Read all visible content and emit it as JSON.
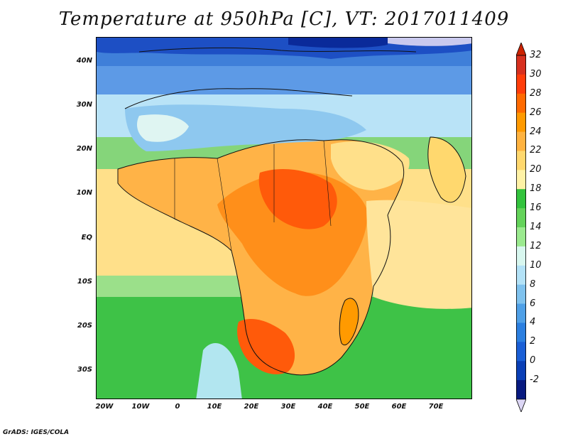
{
  "title": "Temperature at 950hPa [C], VT: 2017011409",
  "footer": "GrADS: IGES/COLA",
  "map": {
    "lat_labels": [
      "40N",
      "30N",
      "20N",
      "10N",
      "EQ",
      "10S",
      "20S",
      "30S"
    ],
    "lon_labels": [
      "20W",
      "10W",
      "0",
      "10E",
      "20E",
      "30E",
      "40E",
      "50E",
      "60E",
      "70E"
    ]
  },
  "colorbar": {
    "labels": [
      "32",
      "30",
      "28",
      "26",
      "24",
      "22",
      "20",
      "18",
      "16",
      "14",
      "12",
      "10",
      "8",
      "6",
      "4",
      "2",
      "0",
      "-2"
    ],
    "colors": [
      "#d7301f",
      "#ff3d0a",
      "#ff6a00",
      "#ff9a00",
      "#ffb340",
      "#ffd86e",
      "#fff2a6",
      "#33c33d",
      "#64d35a",
      "#9bea8f",
      "#d8f7ef",
      "#b3e2f7",
      "#7fc2ee",
      "#4fa0e7",
      "#2b7fe0",
      "#1a5fd6",
      "#0a3fb6",
      "#081a80"
    ],
    "top_color": "#cc2200",
    "bottom_color": "#dcd6f5"
  }
}
